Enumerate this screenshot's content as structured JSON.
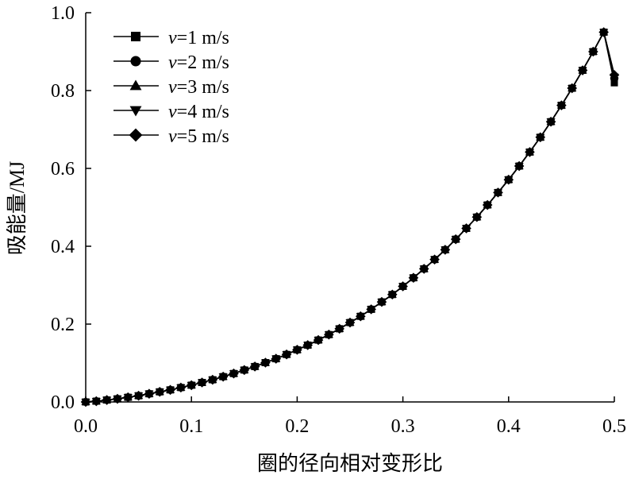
{
  "chart_data": {
    "type": "line",
    "title": "",
    "xlabel": "圈的径向相对变形比",
    "ylabel": "吸能量/MJ",
    "xlim": [
      0.0,
      0.5
    ],
    "ylim": [
      0.0,
      1.0
    ],
    "x_ticks": [
      "0.0",
      "0.1",
      "0.2",
      "0.3",
      "0.4",
      "0.5"
    ],
    "y_ticks": [
      "0.0",
      "0.2",
      "0.4",
      "0.6",
      "0.8",
      "1.0"
    ],
    "grid": false,
    "legend_position": "top-left",
    "x": [
      0.0,
      0.01,
      0.02,
      0.03,
      0.04,
      0.05,
      0.06,
      0.07,
      0.08,
      0.09,
      0.1,
      0.11,
      0.12,
      0.13,
      0.14,
      0.15,
      0.16,
      0.17,
      0.18,
      0.19,
      0.2,
      0.21,
      0.22,
      0.23,
      0.24,
      0.25,
      0.26,
      0.27,
      0.28,
      0.29,
      0.3,
      0.31,
      0.32,
      0.33,
      0.34,
      0.35,
      0.36,
      0.37,
      0.38,
      0.39,
      0.4,
      0.41,
      0.42,
      0.43,
      0.44,
      0.45,
      0.46,
      0.47,
      0.48,
      0.49,
      0.5
    ],
    "series": [
      {
        "name_prefix": "v",
        "name_suffix": "=1 m/s",
        "marker": "square",
        "values": [
          0.0,
          0.002,
          0.005,
          0.008,
          0.012,
          0.016,
          0.021,
          0.026,
          0.031,
          0.037,
          0.043,
          0.05,
          0.057,
          0.065,
          0.073,
          0.082,
          0.091,
          0.101,
          0.111,
          0.122,
          0.134,
          0.146,
          0.159,
          0.173,
          0.188,
          0.204,
          0.22,
          0.238,
          0.257,
          0.276,
          0.297,
          0.319,
          0.342,
          0.366,
          0.391,
          0.418,
          0.446,
          0.475,
          0.506,
          0.538,
          0.571,
          0.606,
          0.642,
          0.68,
          0.72,
          0.762,
          0.806,
          0.852,
          0.9,
          0.95,
          0.82
        ]
      },
      {
        "name_prefix": "v",
        "name_suffix": "=2 m/s",
        "marker": "circle",
        "values": [
          0.0,
          0.002,
          0.005,
          0.008,
          0.012,
          0.016,
          0.021,
          0.026,
          0.031,
          0.037,
          0.043,
          0.05,
          0.057,
          0.065,
          0.073,
          0.082,
          0.091,
          0.101,
          0.111,
          0.122,
          0.134,
          0.146,
          0.159,
          0.173,
          0.188,
          0.204,
          0.22,
          0.238,
          0.257,
          0.276,
          0.297,
          0.319,
          0.342,
          0.366,
          0.391,
          0.418,
          0.446,
          0.475,
          0.506,
          0.538,
          0.571,
          0.606,
          0.642,
          0.68,
          0.72,
          0.762,
          0.806,
          0.852,
          0.9,
          0.95,
          0.83
        ]
      },
      {
        "name_prefix": "v",
        "name_suffix": "=3 m/s",
        "marker": "triangle-up",
        "values": [
          0.0,
          0.002,
          0.005,
          0.008,
          0.012,
          0.016,
          0.021,
          0.026,
          0.031,
          0.037,
          0.043,
          0.05,
          0.057,
          0.065,
          0.073,
          0.082,
          0.091,
          0.101,
          0.111,
          0.122,
          0.134,
          0.146,
          0.159,
          0.173,
          0.188,
          0.204,
          0.22,
          0.238,
          0.257,
          0.276,
          0.297,
          0.319,
          0.342,
          0.366,
          0.391,
          0.418,
          0.446,
          0.475,
          0.506,
          0.538,
          0.571,
          0.606,
          0.642,
          0.68,
          0.72,
          0.762,
          0.806,
          0.852,
          0.9,
          0.95,
          0.84
        ]
      },
      {
        "name_prefix": "v",
        "name_suffix": "=4 m/s",
        "marker": "triangle-down",
        "values": [
          0.0,
          0.002,
          0.005,
          0.008,
          0.012,
          0.016,
          0.021,
          0.026,
          0.031,
          0.037,
          0.043,
          0.05,
          0.057,
          0.065,
          0.073,
          0.082,
          0.091,
          0.101,
          0.111,
          0.122,
          0.134,
          0.146,
          0.159,
          0.173,
          0.188,
          0.204,
          0.22,
          0.238,
          0.257,
          0.276,
          0.297,
          0.319,
          0.342,
          0.366,
          0.391,
          0.418,
          0.446,
          0.475,
          0.506,
          0.538,
          0.571,
          0.606,
          0.642,
          0.68,
          0.72,
          0.762,
          0.806,
          0.852,
          0.9,
          0.95,
          0.835
        ]
      },
      {
        "name_prefix": "v",
        "name_suffix": "=5 m/s",
        "marker": "diamond",
        "values": [
          0.0,
          0.002,
          0.005,
          0.008,
          0.012,
          0.016,
          0.021,
          0.026,
          0.031,
          0.037,
          0.043,
          0.05,
          0.057,
          0.065,
          0.073,
          0.082,
          0.091,
          0.101,
          0.111,
          0.122,
          0.134,
          0.146,
          0.159,
          0.173,
          0.188,
          0.204,
          0.22,
          0.238,
          0.257,
          0.276,
          0.297,
          0.319,
          0.342,
          0.366,
          0.391,
          0.418,
          0.446,
          0.475,
          0.506,
          0.538,
          0.571,
          0.606,
          0.642,
          0.68,
          0.72,
          0.762,
          0.806,
          0.852,
          0.9,
          0.95,
          0.84
        ]
      }
    ],
    "colors": {
      "line": "#000000",
      "marker": "#000000",
      "background": "#ffffff"
    }
  }
}
